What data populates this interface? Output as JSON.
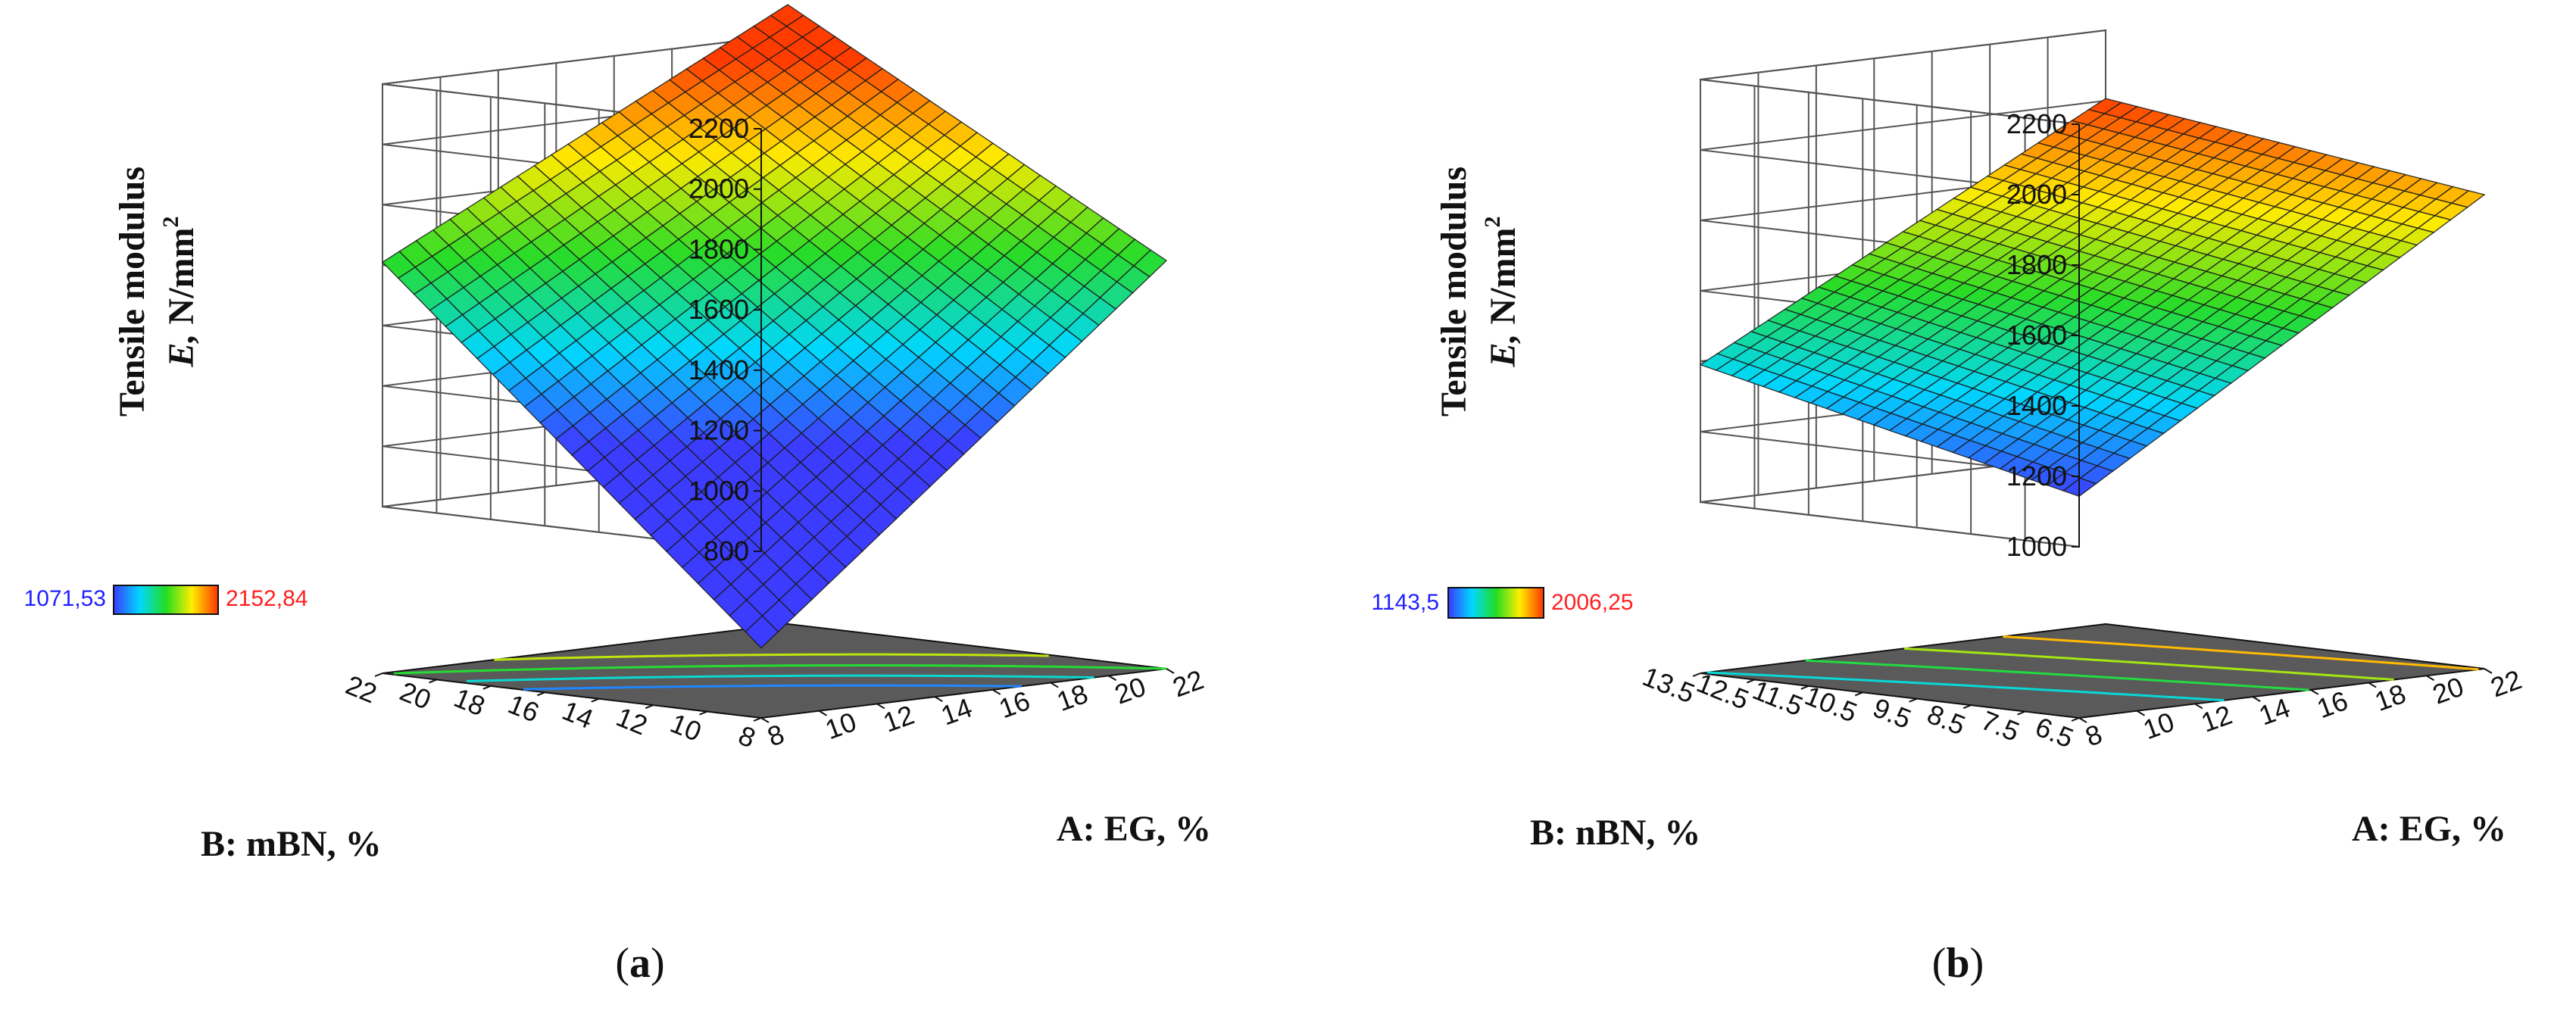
{
  "figure": {
    "panels": [
      {
        "caption_open": "(",
        "caption_letter": "a",
        "caption_close": ")"
      },
      {
        "caption_open": "(",
        "caption_letter": "b",
        "caption_close": ")"
      }
    ]
  },
  "chart_data": [
    {
      "type": "surface3d",
      "panel": "a",
      "title": "",
      "zlabel_line1": "Tensile modulus",
      "zlabel_var": "E,",
      "zlabel_unit": " N/mm",
      "zlabel_sup": "2",
      "xlabel": "A: EG, %",
      "ylabel": "B: mBN, %",
      "x_ticks": [
        "8",
        "10",
        "12",
        "14",
        "16",
        "18",
        "20",
        "22"
      ],
      "y_ticks": [
        "8",
        "10",
        "12",
        "14",
        "16",
        "18",
        "20",
        "22"
      ],
      "z_ticks": [
        "800",
        "1000",
        "1200",
        "1400",
        "1600",
        "1800",
        "2000",
        "2200"
      ],
      "xlim": [
        8,
        22
      ],
      "ylim": [
        8,
        22
      ],
      "zlim": [
        800,
        2200
      ],
      "corner_values": {
        "x_min_y_min": 480,
        "x_max_y_min": 1600,
        "x_min_y_max": 1610,
        "x_max_y_max": 2300
      },
      "colorbar": {
        "min_label": "1071,53",
        "max_label": "2152,84",
        "min": 1071.53,
        "max": 2152.84
      },
      "contour_levels": [
        1200,
        1400,
        1600,
        1800
      ],
      "mesh_divisions": 24
    },
    {
      "type": "surface3d",
      "panel": "b",
      "title": "",
      "zlabel_line1": "Tensile modulus",
      "zlabel_var": "E,",
      "zlabel_unit": " N/mm",
      "zlabel_sup": "2",
      "xlabel": "A: EG, %",
      "ylabel": "B: nBN, %",
      "x_ticks": [
        "8",
        "10",
        "12",
        "14",
        "16",
        "18",
        "20",
        "22"
      ],
      "y_ticks": [
        "6.5",
        "7.5",
        "8.5",
        "9.5",
        "10.5",
        "11.5",
        "12.5",
        "13.5"
      ],
      "z_ticks": [
        "1000",
        "1200",
        "1400",
        "1600",
        "1800",
        "2000",
        "2200"
      ],
      "xlim": [
        8,
        22
      ],
      "ylim": [
        6.5,
        13.5
      ],
      "zlim": [
        1000,
        2200
      ],
      "corner_values": {
        "x_min_y_min": 1143.5,
        "x_max_y_min": 1860,
        "x_min_y_max": 1390,
        "x_max_y_max": 2006.25
      },
      "colorbar": {
        "min_label": "1143,5",
        "max_label": "2006,25",
        "min": 1143.5,
        "max": 2006.25
      },
      "contour_levels": [
        1400,
        1550,
        1700,
        1850
      ],
      "mesh_divisions": 24
    }
  ]
}
